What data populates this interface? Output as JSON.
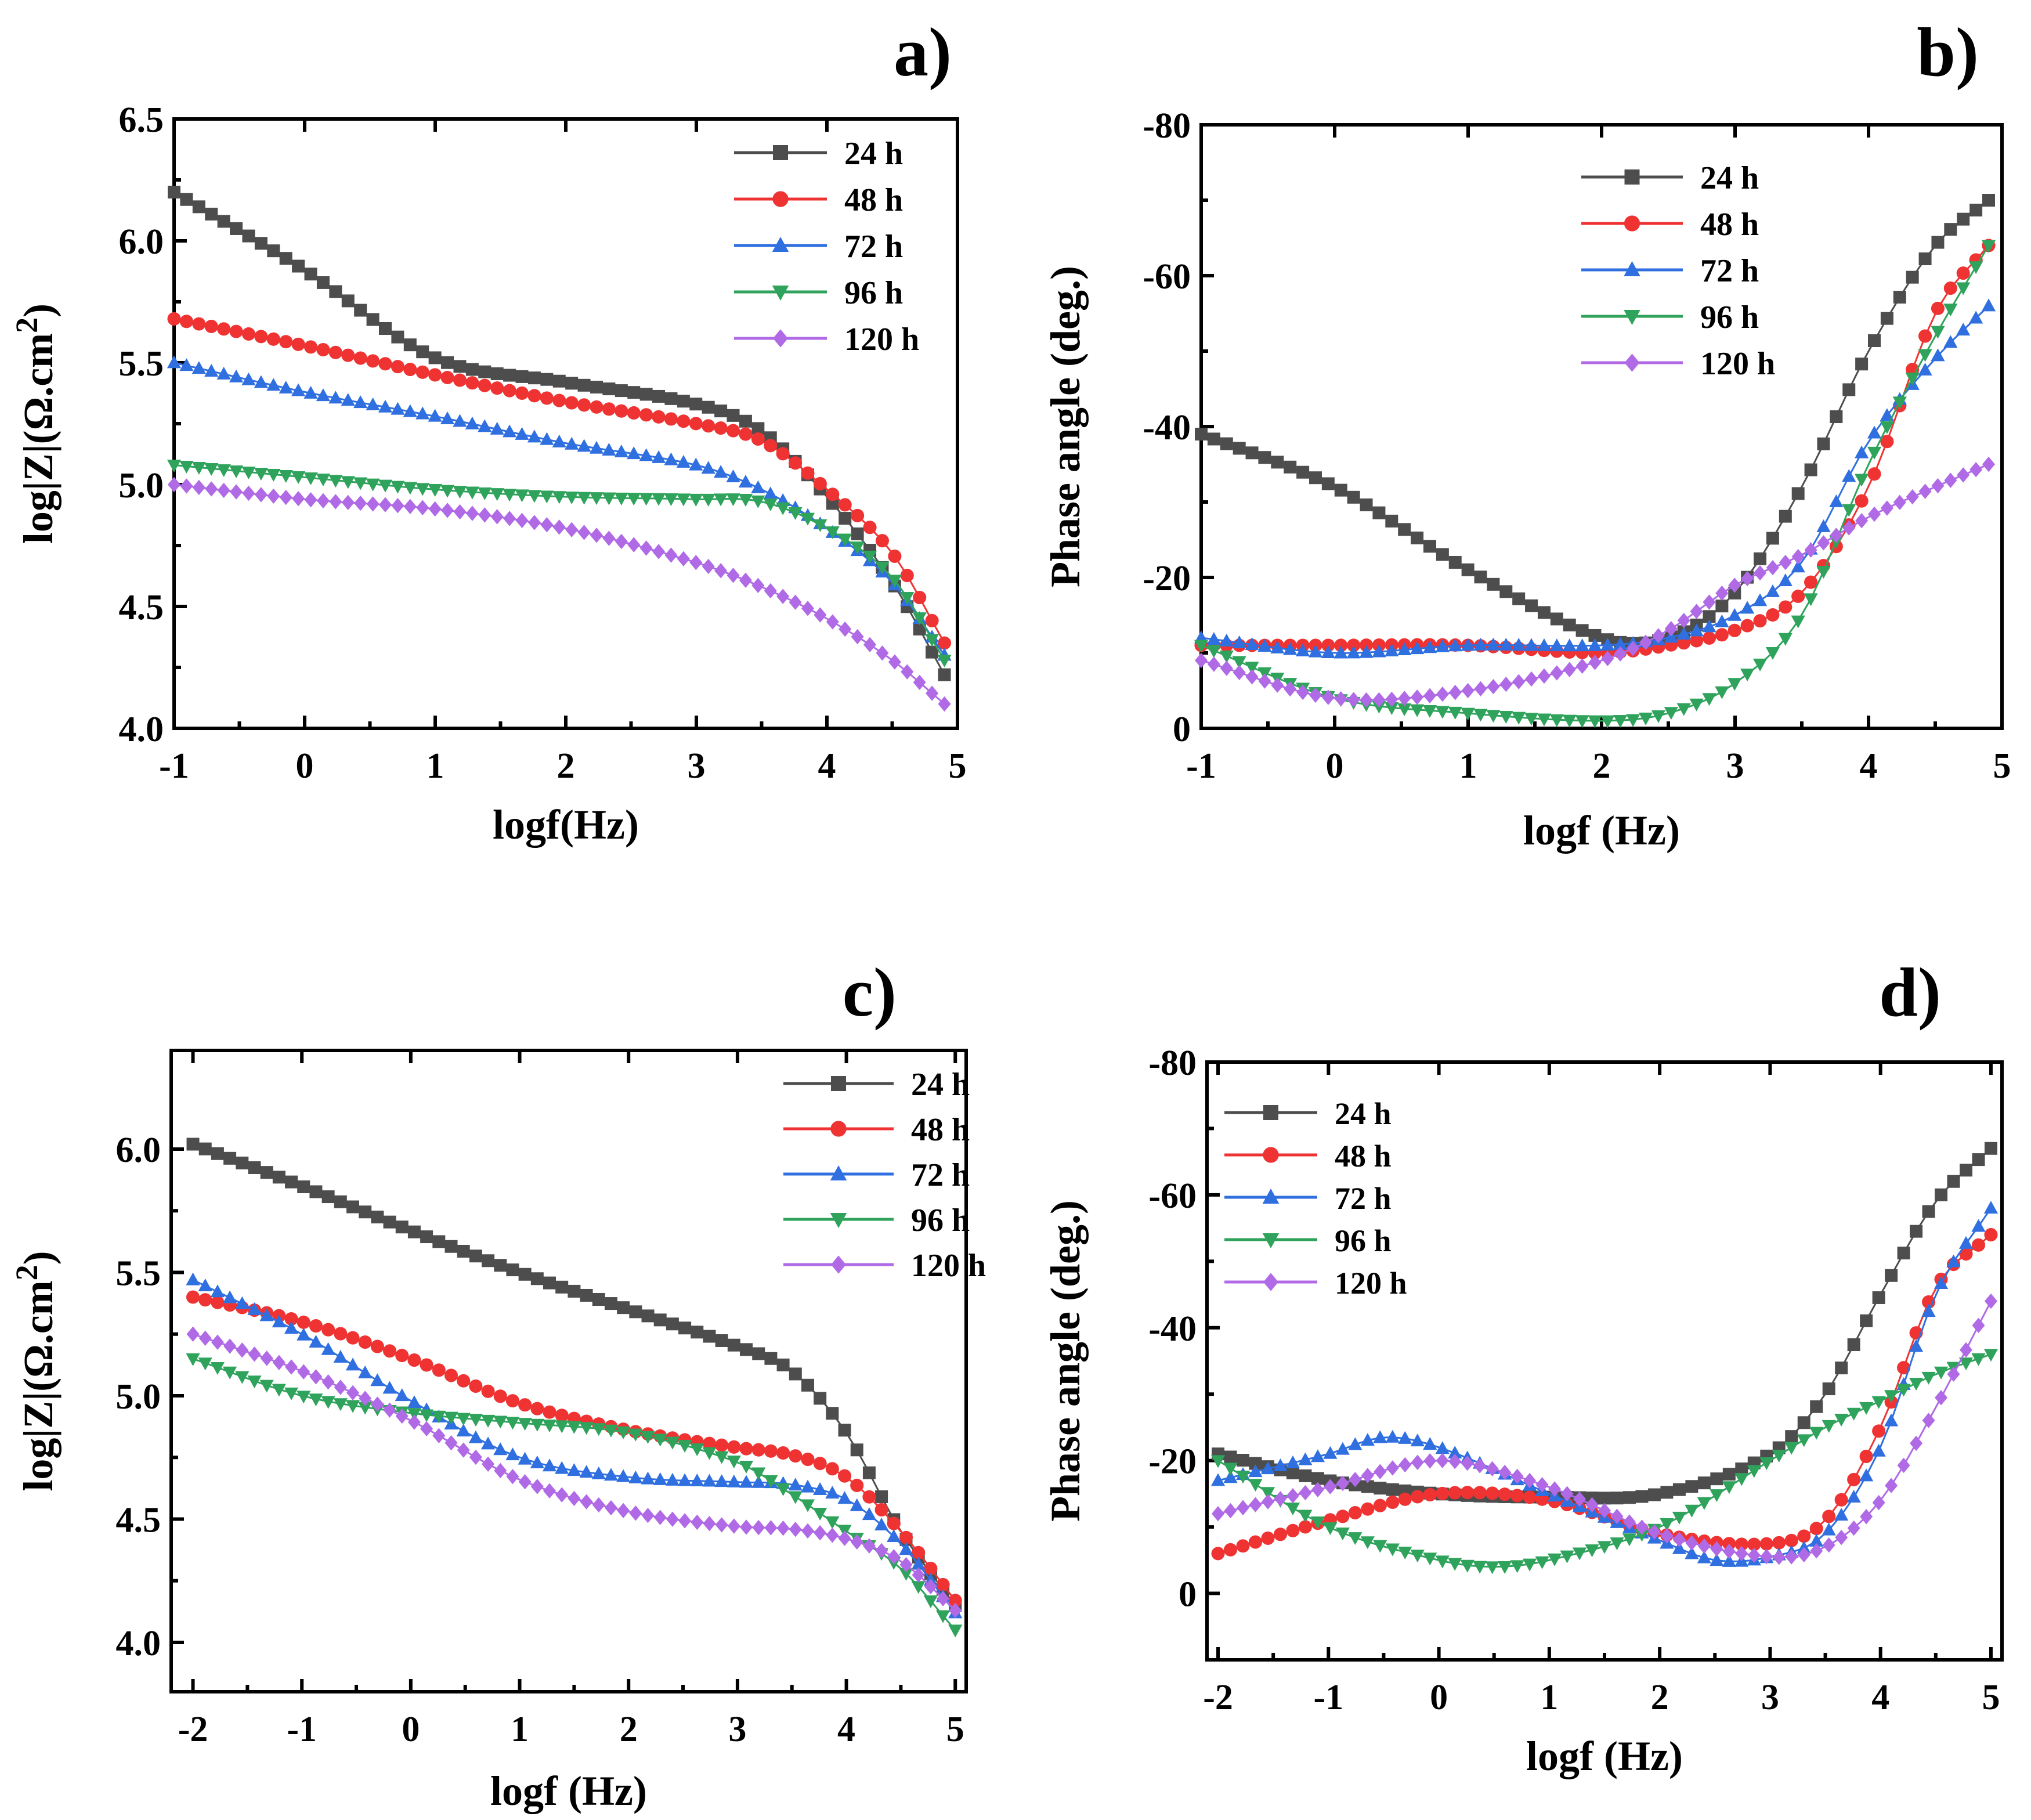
{
  "chart_data": [
    {
      "panel_label": "a)",
      "type": "scatter",
      "xlabel": "logf(Hz)",
      "ylabel": "log|Z|(Ω.cm",
      "ylabel_sup": "2",
      "ylabel_close": ")",
      "xlim": [
        -1,
        5
      ],
      "ylim": [
        4.0,
        6.5
      ],
      "reversed_y": false,
      "x_ticks": [
        -1,
        0,
        1,
        2,
        3,
        4,
        5
      ],
      "x_tick_labels": [
        "-1",
        "0",
        "1",
        "2",
        "3",
        "4",
        "5"
      ],
      "y_ticks": [
        4.0,
        4.5,
        5.0,
        5.5,
        6.0,
        6.5
      ],
      "y_tick_labels": [
        "4.0",
        "4.5",
        "5.0",
        "5.5",
        "6.0",
        "6.5"
      ],
      "legend_position": "top-right",
      "series": [
        {
          "name": "24 h",
          "color": "#4d4d4d",
          "marker": "square",
          "points": [
            [
              -1,
              6.2
            ],
            [
              0,
              5.88
            ],
            [
              1,
              5.52
            ],
            [
              2,
              5.42
            ],
            [
              3,
              5.33
            ],
            [
              3.5,
              5.22
            ],
            [
              4,
              4.95
            ],
            [
              4.5,
              4.6
            ],
            [
              4.9,
              4.22
            ]
          ]
        },
        {
          "name": "48 h",
          "color": "#ef3333",
          "marker": "circle",
          "points": [
            [
              -1,
              5.68
            ],
            [
              0,
              5.57
            ],
            [
              1,
              5.45
            ],
            [
              2,
              5.34
            ],
            [
              3,
              5.25
            ],
            [
              3.5,
              5.18
            ],
            [
              4,
              4.98
            ],
            [
              4.5,
              4.72
            ],
            [
              4.9,
              4.35
            ]
          ]
        },
        {
          "name": "72 h",
          "color": "#2f6fe0",
          "marker": "triangle-up",
          "points": [
            [
              -1,
              5.5
            ],
            [
              0,
              5.38
            ],
            [
              1,
              5.28
            ],
            [
              2,
              5.17
            ],
            [
              3,
              5.08
            ],
            [
              3.5,
              4.98
            ],
            [
              4,
              4.82
            ],
            [
              4.5,
              4.6
            ],
            [
              4.9,
              4.3
            ]
          ]
        },
        {
          "name": "96 h",
          "color": "#2fa35c",
          "marker": "triangle-down",
          "points": [
            [
              -1,
              5.08
            ],
            [
              0,
              5.03
            ],
            [
              1,
              4.98
            ],
            [
              2,
              4.95
            ],
            [
              3,
              4.94
            ],
            [
              3.5,
              4.93
            ],
            [
              4,
              4.82
            ],
            [
              4.5,
              4.62
            ],
            [
              4.9,
              4.28
            ]
          ]
        },
        {
          "name": "120 h",
          "color": "#b06ae6",
          "marker": "diamond",
          "points": [
            [
              -1,
              5.0
            ],
            [
              0,
              4.94
            ],
            [
              1,
              4.9
            ],
            [
              2,
              4.82
            ],
            [
              3,
              4.68
            ],
            [
              3.5,
              4.58
            ],
            [
              4,
              4.45
            ],
            [
              4.5,
              4.28
            ],
            [
              4.9,
              4.1
            ]
          ]
        }
      ]
    },
    {
      "panel_label": "b)",
      "type": "scatter",
      "xlabel": "logf (Hz)",
      "ylabel": "Phase angle (deg.)",
      "ylabel_sup": "",
      "ylabel_close": "",
      "xlim": [
        -1,
        5
      ],
      "ylim": [
        0,
        -80
      ],
      "reversed_y": true,
      "x_ticks": [
        -1,
        0,
        1,
        2,
        3,
        4,
        5
      ],
      "x_tick_labels": [
        "-1",
        "0",
        "1",
        "2",
        "3",
        "4",
        "5"
      ],
      "y_ticks": [
        0,
        -20,
        -40,
        -60,
        -80
      ],
      "y_tick_labels": [
        "0",
        "-20",
        "-40",
        "-60",
        "-80"
      ],
      "legend_position": "top-center",
      "series": [
        {
          "name": "24 h",
          "color": "#4d4d4d",
          "marker": "square",
          "points": [
            [
              -1,
              -39
            ],
            [
              0,
              -32
            ],
            [
              1,
              -21
            ],
            [
              2,
              -12
            ],
            [
              2.5,
              -12
            ],
            [
              3,
              -18
            ],
            [
              3.5,
              -32
            ],
            [
              4,
              -50
            ],
            [
              4.5,
              -64
            ],
            [
              4.9,
              -70
            ]
          ]
        },
        {
          "name": "48 h",
          "color": "#ef3333",
          "marker": "circle",
          "points": [
            [
              -1,
              -11
            ],
            [
              0,
              -11
            ],
            [
              1,
              -11
            ],
            [
              2,
              -10
            ],
            [
              2.5,
              -11
            ],
            [
              3,
              -13
            ],
            [
              3.5,
              -18
            ],
            [
              4,
              -32
            ],
            [
              4.5,
              -55
            ],
            [
              4.9,
              -64
            ]
          ]
        },
        {
          "name": "72 h",
          "color": "#2f6fe0",
          "marker": "triangle-up",
          "points": [
            [
              -1,
              -12
            ],
            [
              0,
              -10
            ],
            [
              1,
              -11
            ],
            [
              2,
              -11
            ],
            [
              2.5,
              -12
            ],
            [
              3,
              -15
            ],
            [
              3.5,
              -22
            ],
            [
              4,
              -38
            ],
            [
              4.5,
              -49
            ],
            [
              4.9,
              -56
            ]
          ]
        },
        {
          "name": "96 h",
          "color": "#2fa35c",
          "marker": "triangle-down",
          "points": [
            [
              -1,
              -11
            ],
            [
              0,
              -4
            ],
            [
              1,
              -2
            ],
            [
              2,
              -1
            ],
            [
              2.5,
              -2
            ],
            [
              3,
              -6
            ],
            [
              3.5,
              -15
            ],
            [
              4,
              -35
            ],
            [
              4.5,
              -52
            ],
            [
              4.9,
              -64
            ]
          ]
        },
        {
          "name": "120 h",
          "color": "#b06ae6",
          "marker": "diamond",
          "points": [
            [
              -1,
              -9
            ],
            [
              0,
              -4
            ],
            [
              1,
              -5
            ],
            [
              2,
              -9
            ],
            [
              2.5,
              -13
            ],
            [
              3,
              -19
            ],
            [
              3.5,
              -23
            ],
            [
              4,
              -28
            ],
            [
              4.5,
              -32
            ],
            [
              4.9,
              -35
            ]
          ]
        }
      ]
    },
    {
      "panel_label": "c)",
      "type": "scatter",
      "xlabel": "logf (Hz)",
      "ylabel": "log|Z|(Ω.cm",
      "ylabel_sup": "2",
      "ylabel_close": ")",
      "xlim": [
        -2.2,
        5.1
      ],
      "ylim": [
        3.8,
        6.4
      ],
      "reversed_y": false,
      "x_ticks": [
        -2,
        -1,
        0,
        1,
        2,
        3,
        4,
        5
      ],
      "x_tick_labels": [
        "-2",
        "-1",
        "0",
        "1",
        "2",
        "3",
        "4",
        "5"
      ],
      "y_ticks": [
        4.0,
        4.5,
        5.0,
        5.5,
        6.0
      ],
      "y_tick_labels": [
        "4.0",
        "4.5",
        "5.0",
        "5.5",
        "6.0"
      ],
      "legend_position": "top-right",
      "series": [
        {
          "name": "24 h",
          "color": "#4d4d4d",
          "marker": "square",
          "points": [
            [
              -2,
              6.02
            ],
            [
              -1,
              5.85
            ],
            [
              0,
              5.67
            ],
            [
              1,
              5.5
            ],
            [
              2,
              5.35
            ],
            [
              3,
              5.2
            ],
            [
              3.5,
              5.1
            ],
            [
              4,
              4.85
            ],
            [
              4.5,
              4.45
            ],
            [
              5,
              4.15
            ]
          ]
        },
        {
          "name": "48 h",
          "color": "#ef3333",
          "marker": "circle",
          "points": [
            [
              -2,
              5.4
            ],
            [
              -1,
              5.3
            ],
            [
              0,
              5.15
            ],
            [
              1,
              4.97
            ],
            [
              2,
              4.86
            ],
            [
              3,
              4.79
            ],
            [
              3.5,
              4.76
            ],
            [
              4,
              4.67
            ],
            [
              4.5,
              4.45
            ],
            [
              5,
              4.17
            ]
          ]
        },
        {
          "name": "72 h",
          "color": "#2f6fe0",
          "marker": "triangle-up",
          "points": [
            [
              -2,
              5.47
            ],
            [
              -1,
              5.25
            ],
            [
              0,
              4.98
            ],
            [
              1,
              4.75
            ],
            [
              2,
              4.67
            ],
            [
              3,
              4.65
            ],
            [
              3.5,
              4.64
            ],
            [
              4,
              4.58
            ],
            [
              4.5,
              4.4
            ],
            [
              5,
              4.12
            ]
          ]
        },
        {
          "name": "96 h",
          "color": "#2fa35c",
          "marker": "triangle-down",
          "points": [
            [
              -2,
              5.15
            ],
            [
              -1,
              5.0
            ],
            [
              0,
              4.93
            ],
            [
              1,
              4.89
            ],
            [
              2,
              4.85
            ],
            [
              3,
              4.73
            ],
            [
              3.5,
              4.6
            ],
            [
              4,
              4.45
            ],
            [
              4.5,
              4.3
            ],
            [
              5,
              4.05
            ]
          ]
        },
        {
          "name": "120 h",
          "color": "#b06ae6",
          "marker": "diamond",
          "points": [
            [
              -2,
              5.25
            ],
            [
              -1,
              5.1
            ],
            [
              0,
              4.9
            ],
            [
              1,
              4.66
            ],
            [
              2,
              4.53
            ],
            [
              3,
              4.47
            ],
            [
              3.5,
              4.46
            ],
            [
              4,
              4.42
            ],
            [
              4.5,
              4.33
            ],
            [
              5,
              4.13
            ]
          ]
        }
      ]
    },
    {
      "panel_label": "d)",
      "type": "scatter",
      "xlabel": "logf (Hz)",
      "ylabel": "Phase angle (deg.)",
      "ylabel_sup": "",
      "ylabel_close": "",
      "xlim": [
        -2.1,
        5.1
      ],
      "ylim": [
        10,
        -80
      ],
      "reversed_y": true,
      "x_ticks": [
        -2,
        -1,
        0,
        1,
        2,
        3,
        4,
        5
      ],
      "x_tick_labels": [
        "-2",
        "-1",
        "0",
        "1",
        "2",
        "3",
        "4",
        "5"
      ],
      "y_ticks": [
        0,
        -20,
        -40,
        -60,
        -80
      ],
      "y_tick_labels": [
        "0",
        "-20",
        "-40",
        "-60",
        "-80"
      ],
      "legend_position": "top-left",
      "series": [
        {
          "name": "24 h",
          "color": "#4d4d4d",
          "marker": "square",
          "points": [
            [
              -2,
              -21
            ],
            [
              -1,
              -17
            ],
            [
              0,
              -15
            ],
            [
              1,
              -14.5
            ],
            [
              2,
              -15
            ],
            [
              3,
              -21
            ],
            [
              3.5,
              -30
            ],
            [
              4,
              -45
            ],
            [
              4.5,
              -59
            ],
            [
              5,
              -67
            ]
          ]
        },
        {
          "name": "48 h",
          "color": "#ef3333",
          "marker": "circle",
          "points": [
            [
              -2,
              -6
            ],
            [
              -1,
              -11
            ],
            [
              0,
              -15
            ],
            [
              1,
              -14
            ],
            [
              2,
              -9
            ],
            [
              3,
              -7.5
            ],
            [
              3.5,
              -11
            ],
            [
              4,
              -25
            ],
            [
              4.5,
              -46
            ],
            [
              5,
              -54
            ]
          ]
        },
        {
          "name": "72 h",
          "color": "#2f6fe0",
          "marker": "triangle-up",
          "points": [
            [
              -2,
              -17
            ],
            [
              -1,
              -21
            ],
            [
              -0.5,
              -23.5
            ],
            [
              0,
              -22
            ],
            [
              1,
              -15
            ],
            [
              2,
              -8
            ],
            [
              2.5,
              -5
            ],
            [
              3,
              -5.5
            ],
            [
              3.5,
              -9
            ],
            [
              4,
              -22
            ],
            [
              4.5,
              -45
            ],
            [
              5,
              -58
            ]
          ]
        },
        {
          "name": "96 h",
          "color": "#2fa35c",
          "marker": "triangle-down",
          "points": [
            [
              -2,
              -20
            ],
            [
              -1,
              -10
            ],
            [
              0,
              -5
            ],
            [
              0.5,
              -4
            ],
            [
              1,
              -5
            ],
            [
              2,
              -10
            ],
            [
              3,
              -20
            ],
            [
              3.5,
              -25
            ],
            [
              4,
              -29
            ],
            [
              4.5,
              -33
            ],
            [
              5,
              -36
            ]
          ]
        },
        {
          "name": "120 h",
          "color": "#b06ae6",
          "marker": "diamond",
          "points": [
            [
              -2,
              -12
            ],
            [
              -1,
              -16
            ],
            [
              0,
              -20
            ],
            [
              1,
              -16
            ],
            [
              2,
              -9
            ],
            [
              3,
              -5.5
            ],
            [
              3.5,
              -7
            ],
            [
              4,
              -14
            ],
            [
              4.5,
              -28
            ],
            [
              5,
              -44
            ]
          ]
        }
      ]
    }
  ]
}
